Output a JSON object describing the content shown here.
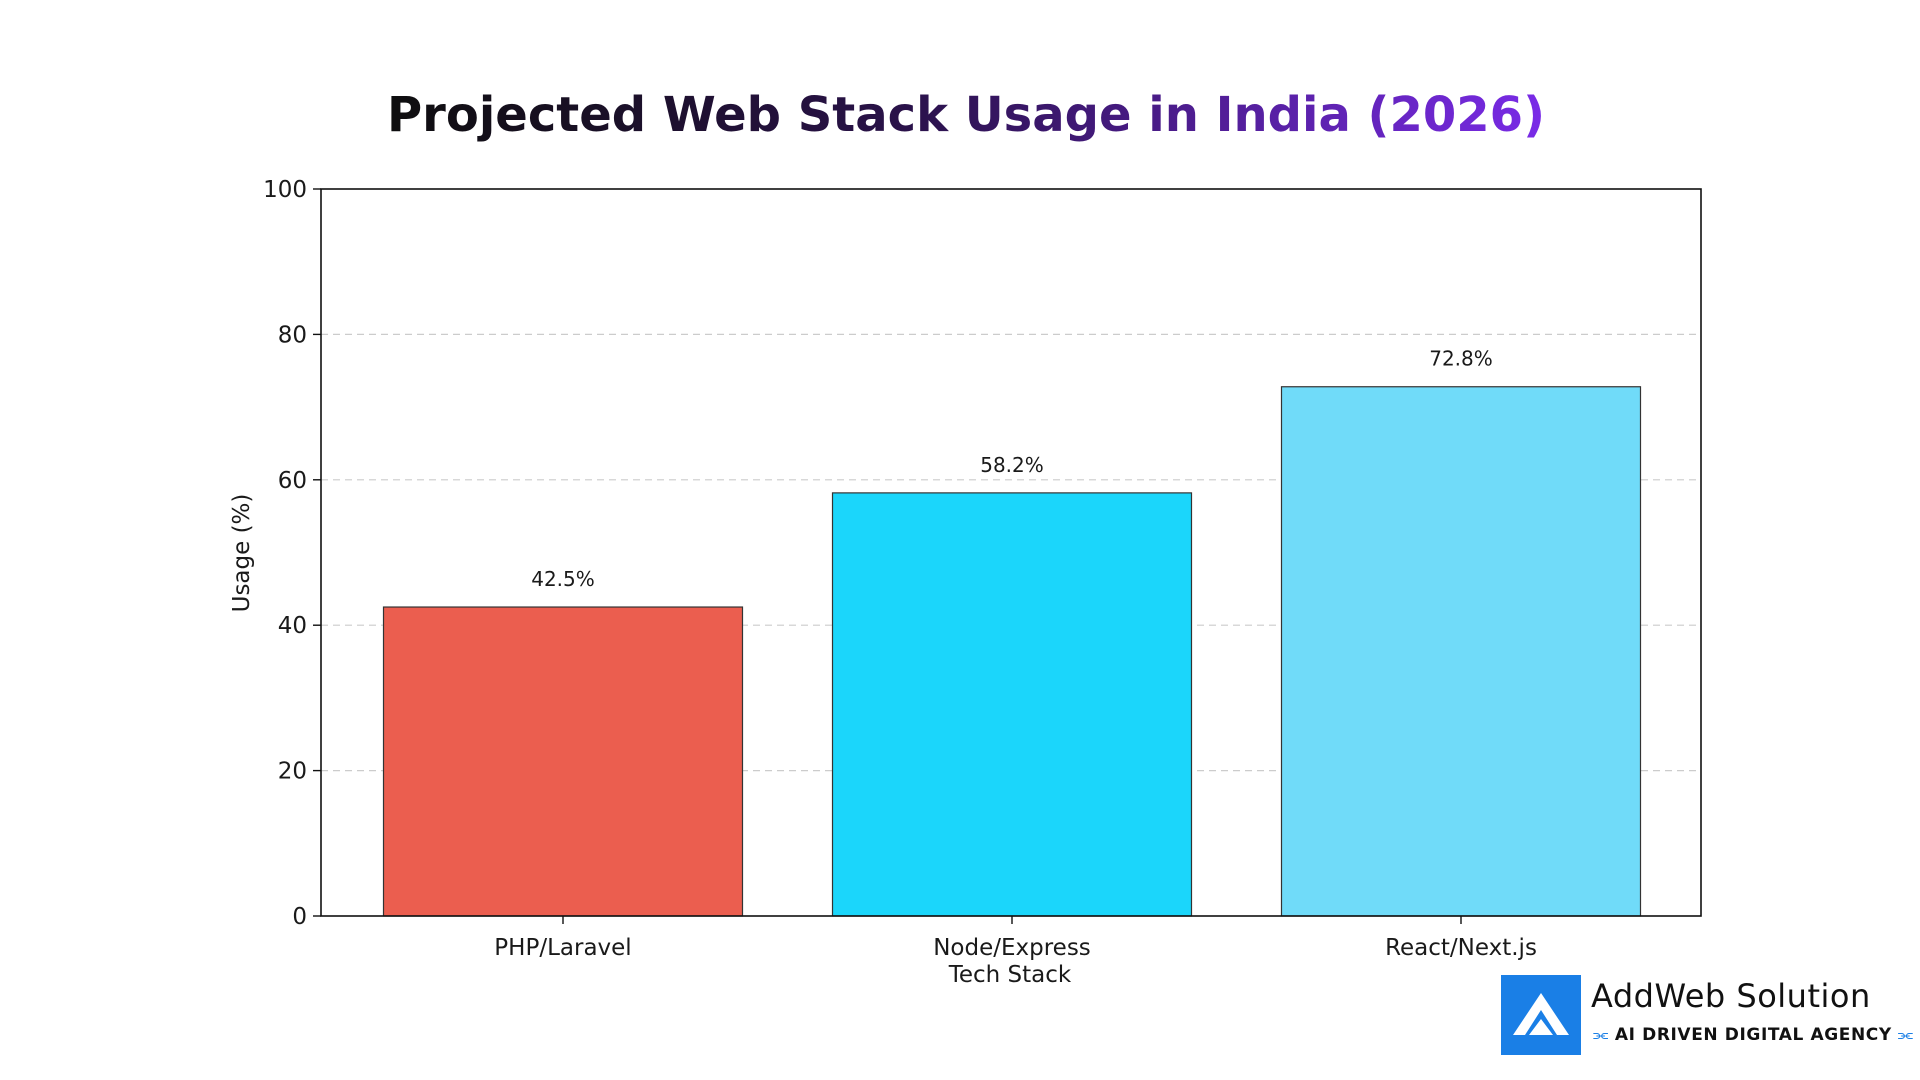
{
  "chart_data": {
    "type": "bar",
    "title": "Projected Web Stack Usage in India (2026)",
    "title_gradient": [
      "#0e0e0e",
      "#7a2be8"
    ],
    "categories": [
      "PHP/Laravel",
      "Node/Express",
      "React/Next.js"
    ],
    "values": [
      42.5,
      58.2,
      72.8
    ],
    "data_labels": [
      "42.5%",
      "58.2%",
      "72.8%"
    ],
    "bar_colors": [
      "#eb5e4f",
      "#1bd6fb",
      "#70dbf9"
    ],
    "xlabel": "Tech Stack",
    "ylabel": "Usage (%)",
    "ylim": [
      0,
      100
    ],
    "yticks": [
      0,
      20,
      40,
      60,
      80,
      100
    ],
    "grid": "horizontal dashed"
  },
  "brand": {
    "name": "AddWeb Solution",
    "tagline": "AI DRIVEN DIGITAL AGENCY",
    "color": "#1a7fe6"
  }
}
